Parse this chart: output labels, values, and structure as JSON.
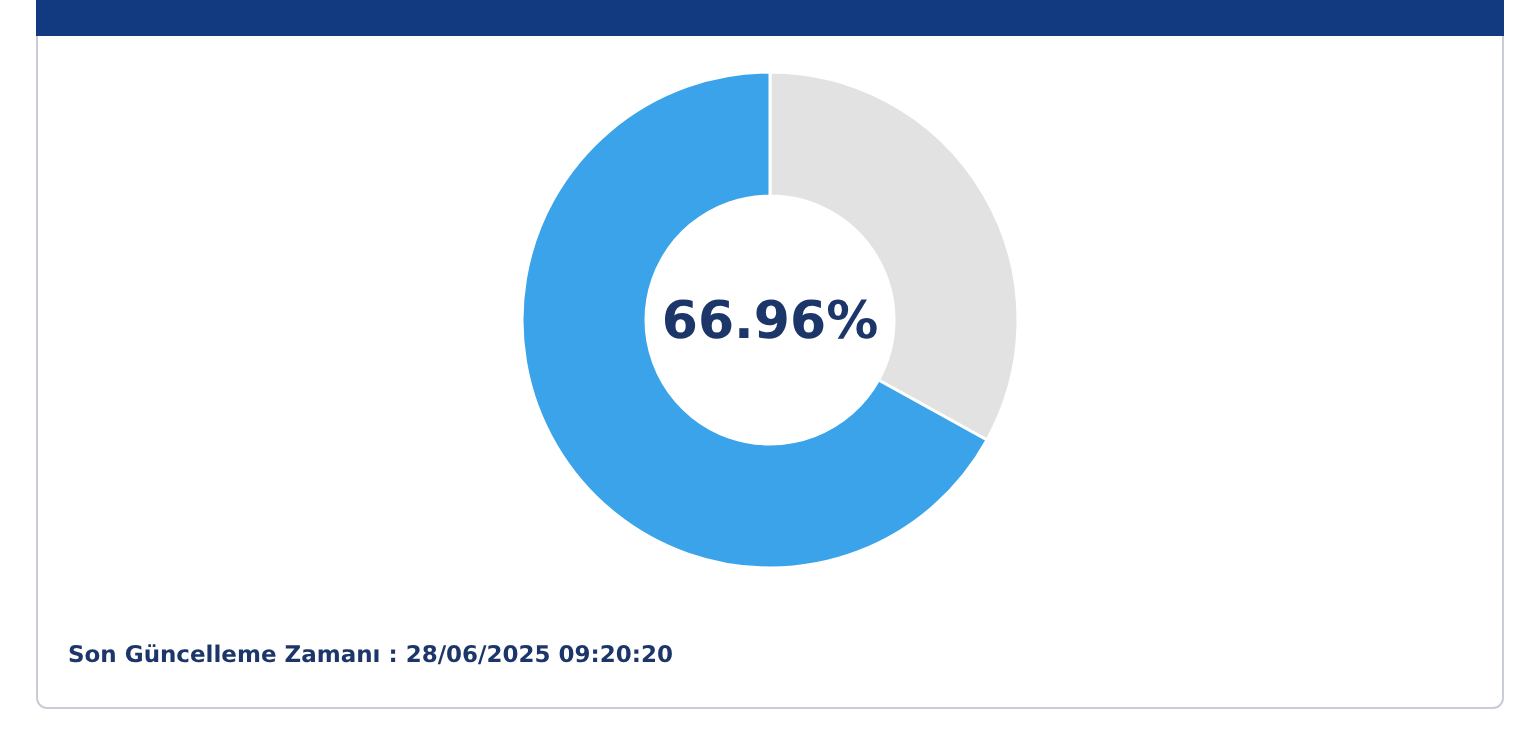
{
  "chart_data": {
    "type": "donut",
    "categories": [
      null,
      null
    ],
    "values": [
      33.04,
      66.96
    ],
    "colors": [
      "#e2e2e2",
      "#3aa3e9"
    ],
    "value_labels": [
      null,
      "66.96%"
    ],
    "annotations": [
      "Son Güncelleme Zamanı : 28/06/2025 09:20:20"
    ]
  }
}
